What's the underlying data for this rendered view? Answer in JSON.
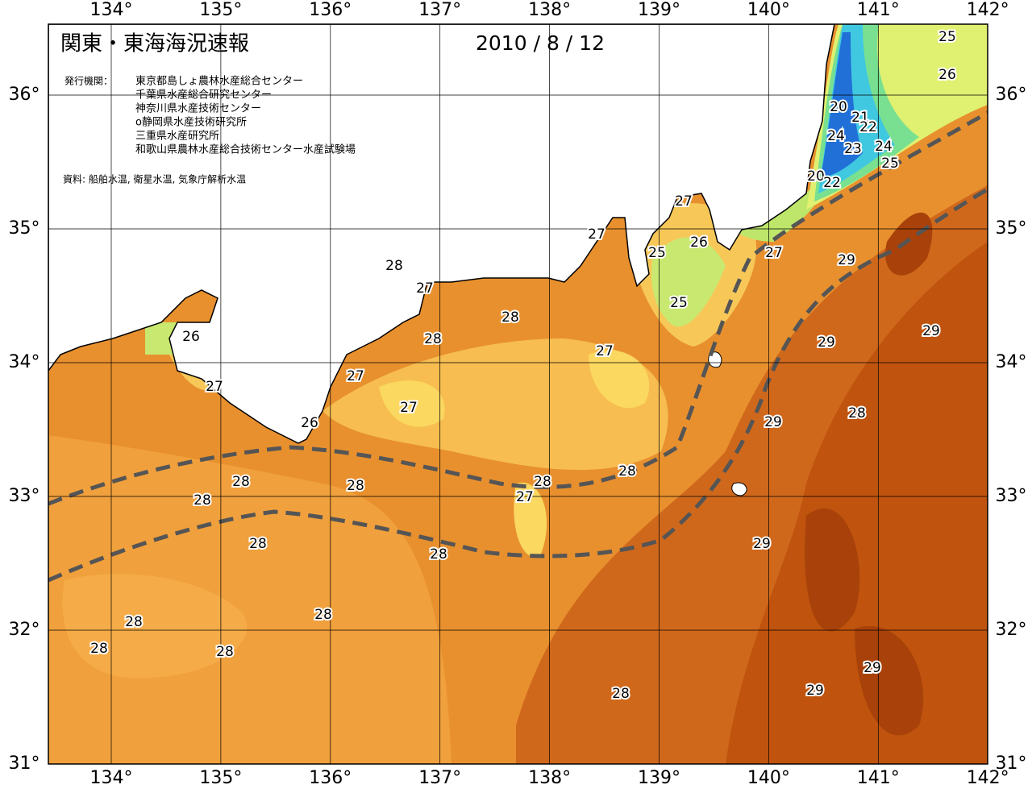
{
  "header": {
    "title": "関東・東海海況速報",
    "date": "2010 / 8 / 12"
  },
  "agencies": {
    "label": "発行機関：",
    "items": [
      "東京都島しょ農林水産総合センター",
      "千葉県水産総合研究センター",
      "神奈川県水産技術センター",
      "o静岡県水産技術研究所",
      "三重県水産研究所",
      "和歌山県農林水産総合技術センター水産試験場"
    ]
  },
  "source": "資料: 船舶水温, 衛星水温, 気象庁解析水温",
  "map": {
    "lon_ticks": [
      {
        "value": 134,
        "label": "134°"
      },
      {
        "value": 135,
        "label": "135°"
      },
      {
        "value": 136,
        "label": "136°"
      },
      {
        "value": 137,
        "label": "137°"
      },
      {
        "value": 138,
        "label": "138°"
      },
      {
        "value": 139,
        "label": "139°"
      },
      {
        "value": 140,
        "label": "140°"
      },
      {
        "value": 141,
        "label": "141°"
      },
      {
        "value": 142,
        "label": "142°"
      }
    ],
    "lat_ticks": [
      {
        "value": 31,
        "label": "31°"
      },
      {
        "value": 32,
        "label": "32°"
      },
      {
        "value": 33,
        "label": "33°"
      },
      {
        "value": 34,
        "label": "34°"
      },
      {
        "value": 35,
        "label": "35°"
      },
      {
        "value": 36,
        "label": "36°"
      }
    ],
    "contour_labels": [
      25,
      26,
      20,
      21,
      22,
      24,
      23,
      24,
      25,
      20,
      22,
      27,
      27,
      26,
      25,
      27,
      28,
      27,
      29,
      25,
      28,
      28,
      27,
      26,
      29,
      29,
      27,
      27,
      27,
      26,
      29,
      28,
      28,
      28,
      27,
      28,
      28,
      28,
      28,
      28,
      29,
      28,
      28,
      28,
      28,
      29,
      29,
      28
    ]
  }
}
